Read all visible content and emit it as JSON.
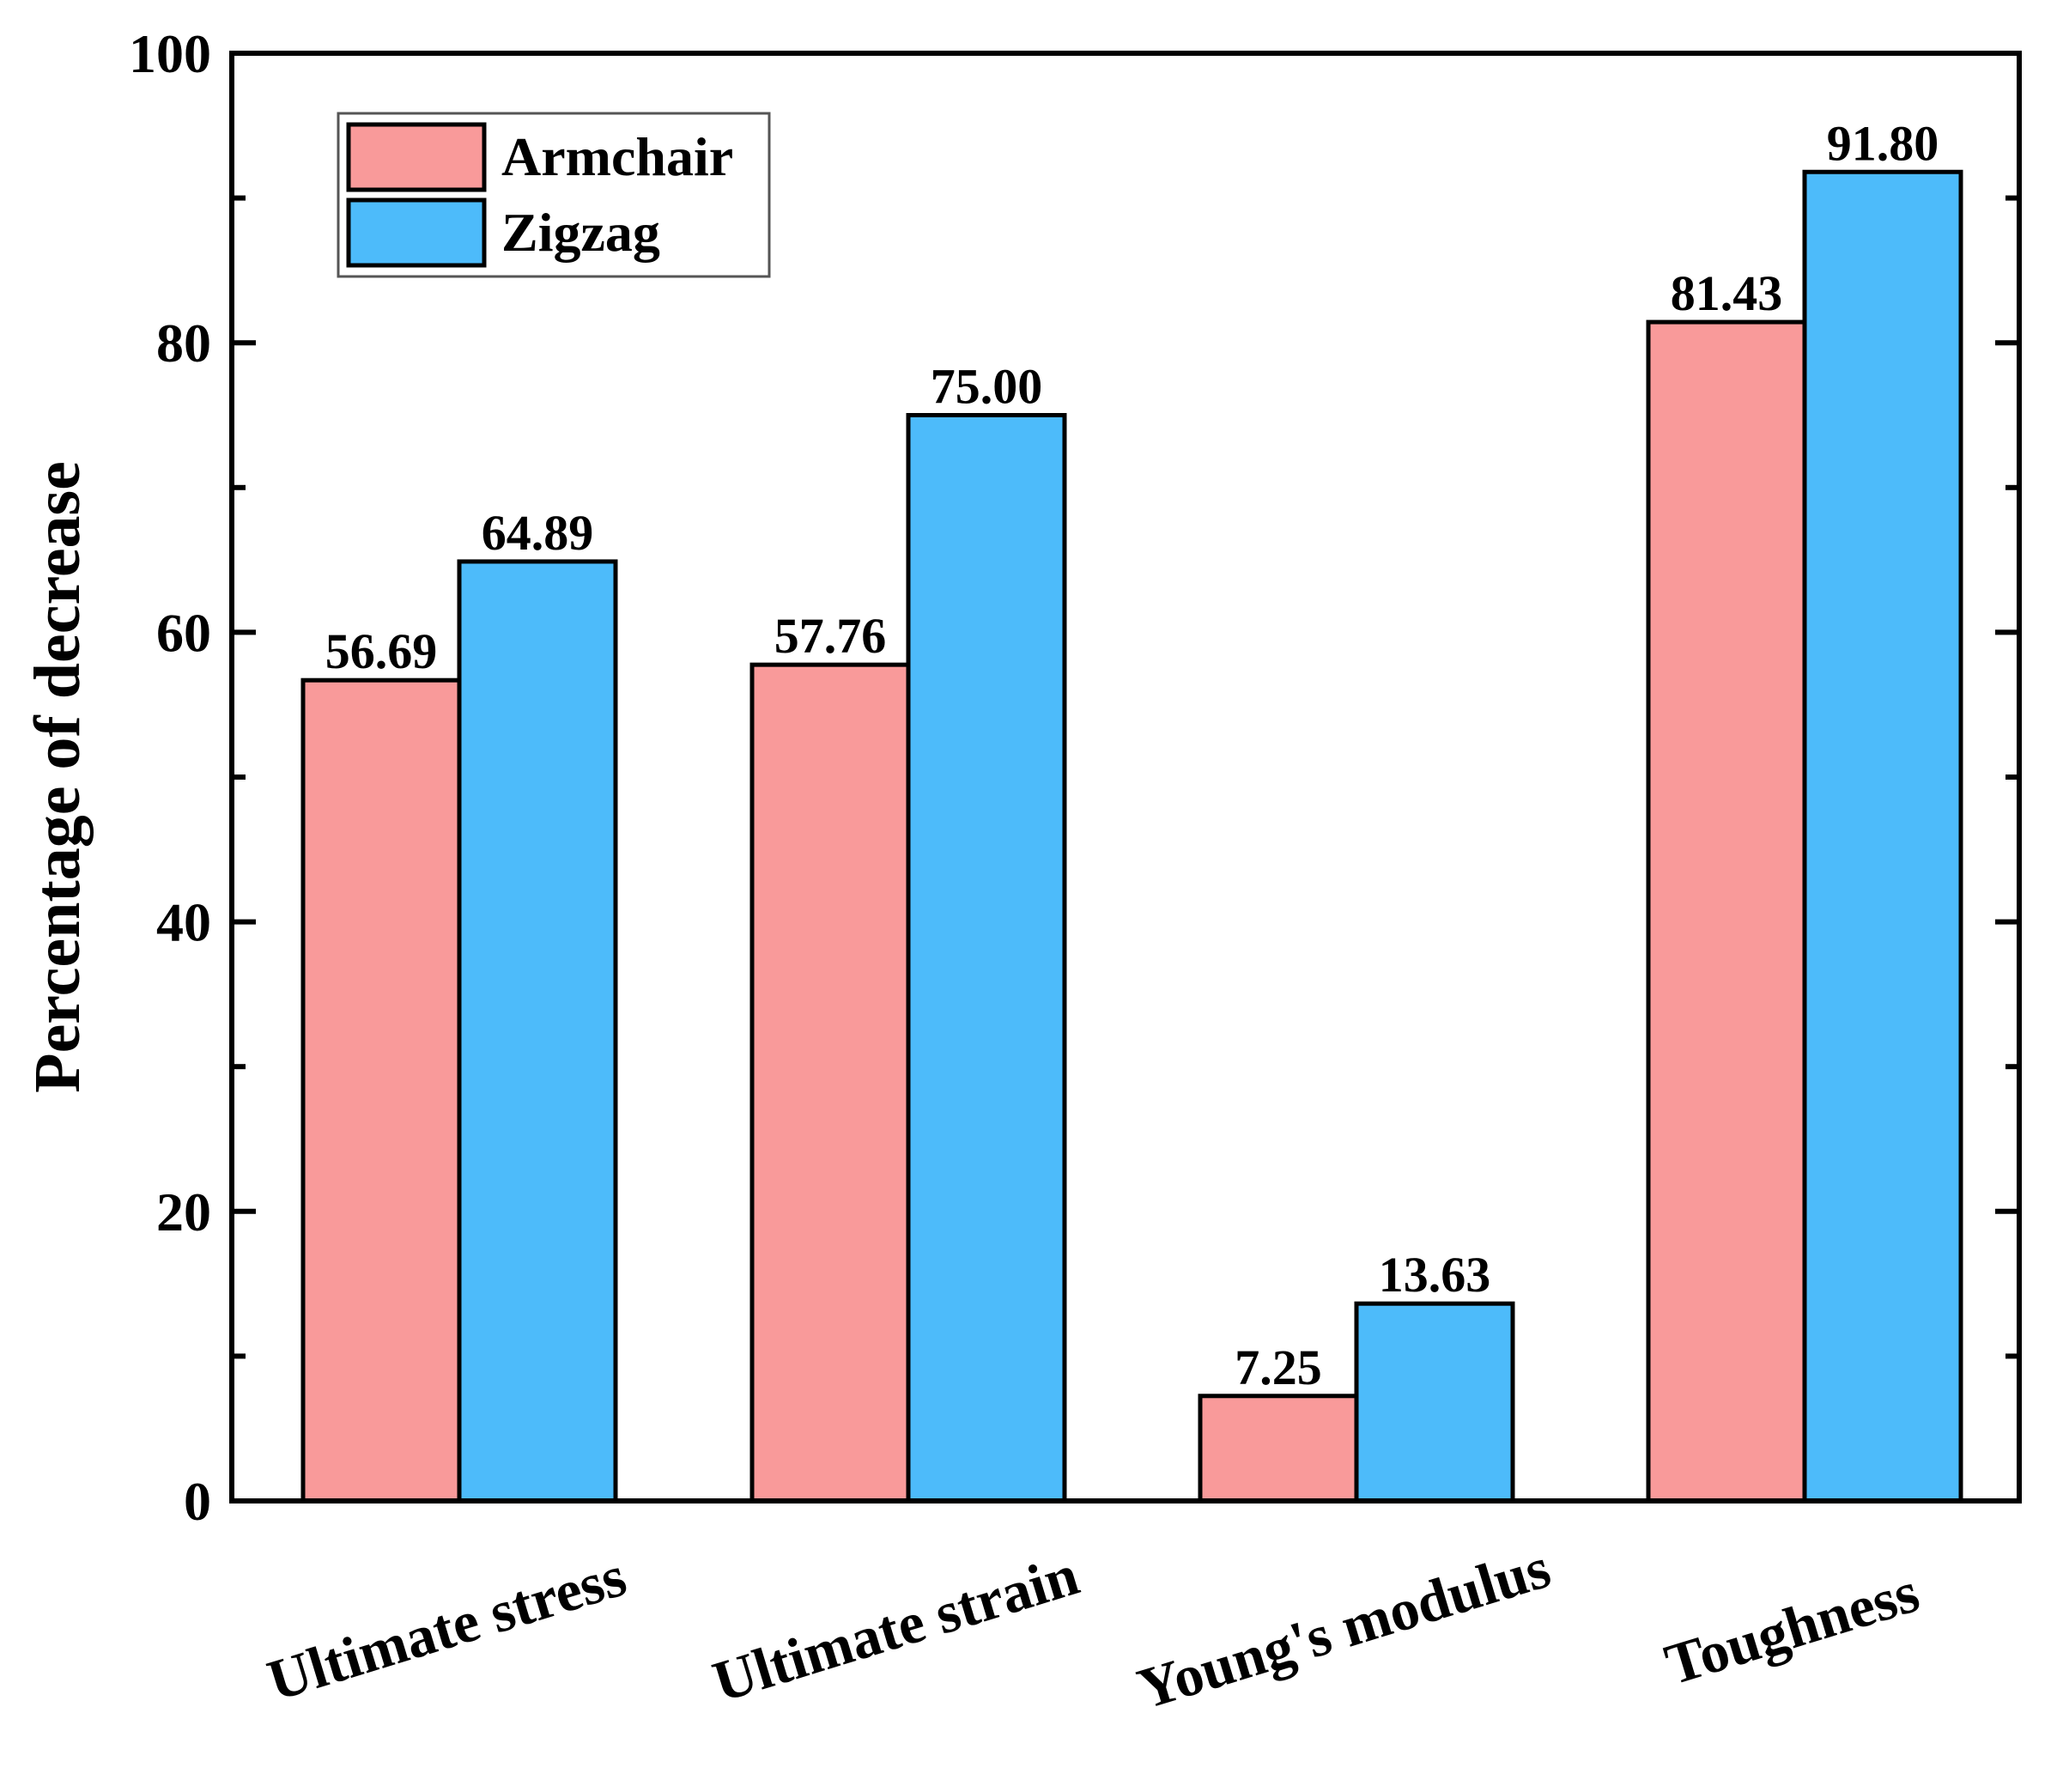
{
  "chart_data": {
    "type": "bar",
    "title": "",
    "xlabel": "",
    "ylabel": "Percentage of decrease",
    "ylim": [
      0,
      100
    ],
    "yticks": [
      0,
      20,
      40,
      60,
      80,
      100
    ],
    "grid": false,
    "legend_position": "top-left",
    "categories": [
      "Ultimate stress",
      "Ultimate strain",
      "Young's modulus",
      "Toughness"
    ],
    "series": [
      {
        "name": "Armchair",
        "color": "#f99a9a",
        "values": [
          56.69,
          57.76,
          7.25,
          81.43
        ],
        "labels": [
          "56.69",
          "57.76",
          "7.25",
          "81.43"
        ]
      },
      {
        "name": "Zigzag",
        "color": "#4dbbfa",
        "values": [
          64.89,
          75.0,
          13.63,
          91.8
        ],
        "labels": [
          "64.89",
          "75.00",
          "13.63",
          "91.80"
        ]
      }
    ]
  }
}
